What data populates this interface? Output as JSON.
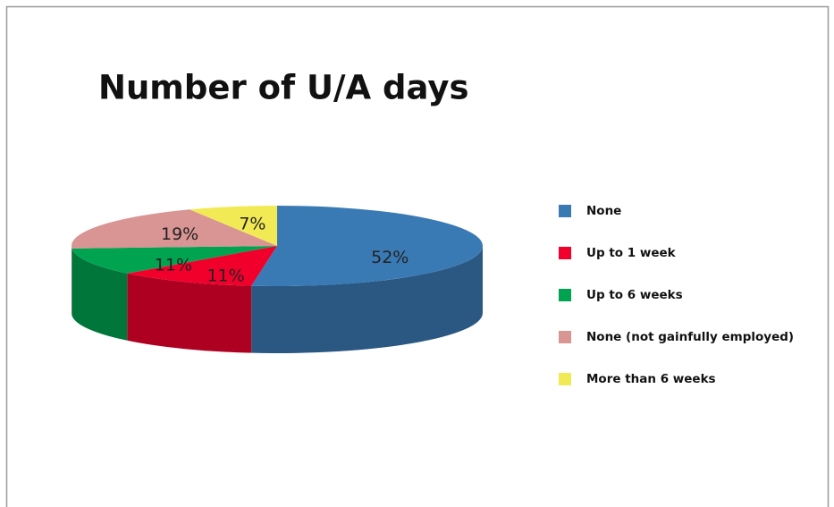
{
  "chart_data": {
    "type": "pie",
    "title": "Number of U/A days",
    "categories": [
      "None",
      "Up to 1 week",
      "Up to 6 weeks",
      "None (not gainfully employed)",
      "More than 6 weeks"
    ],
    "values": [
      52,
      11,
      11,
      19,
      7
    ],
    "value_labels": [
      "52%",
      "11%",
      "11%",
      "19%",
      "7%"
    ],
    "colors": [
      "#3a7ab4",
      "#f2002c",
      "#00a450",
      "#d99494",
      "#f2ea55"
    ],
    "legend": "right"
  }
}
